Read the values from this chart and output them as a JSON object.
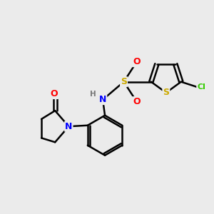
{
  "background_color": "#ebebeb",
  "atom_colors": {
    "C": "#000000",
    "N": "#0000ff",
    "O": "#ff0000",
    "S_sulfonyl": "#ccaa00",
    "S_thiophene": "#ccaa00",
    "Cl": "#33cc00",
    "H": "#777777"
  },
  "figsize": [
    3.0,
    3.0
  ],
  "dpi": 100
}
